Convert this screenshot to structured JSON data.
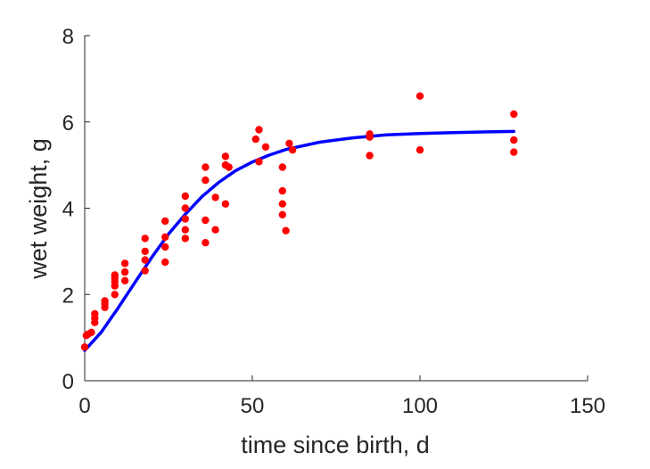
{
  "chart_data": {
    "type": "scatter",
    "title": "",
    "xlabel": "time since birth, d",
    "ylabel": "wet weight, g",
    "xlim": [
      0,
      150
    ],
    "ylim": [
      0,
      8
    ],
    "x_ticks": [
      0,
      50,
      100,
      150
    ],
    "y_ticks": [
      0,
      2,
      4,
      6,
      8
    ],
    "grid": false,
    "legend": "none",
    "colors": {
      "points": "#ff0000",
      "curve": "#0000ff",
      "axis": "#262626"
    },
    "series": [
      {
        "type": "scatter",
        "points": [
          [
            0,
            0.78
          ],
          [
            0.5,
            1.05
          ],
          [
            1,
            1.08
          ],
          [
            2,
            1.12
          ],
          [
            3,
            1.35
          ],
          [
            3,
            1.45
          ],
          [
            3,
            1.55
          ],
          [
            6,
            1.7
          ],
          [
            6,
            1.78
          ],
          [
            6,
            1.85
          ],
          [
            9,
            2.0
          ],
          [
            9,
            2.2
          ],
          [
            9,
            2.3
          ],
          [
            9,
            2.38
          ],
          [
            9,
            2.45
          ],
          [
            12,
            2.32
          ],
          [
            12,
            2.52
          ],
          [
            12,
            2.72
          ],
          [
            18,
            2.55
          ],
          [
            18,
            2.8
          ],
          [
            18,
            3.0
          ],
          [
            18,
            3.3
          ],
          [
            24,
            2.75
          ],
          [
            24,
            3.1
          ],
          [
            24,
            3.33
          ],
          [
            24,
            3.7
          ],
          [
            30,
            3.3
          ],
          [
            30,
            3.5
          ],
          [
            30,
            3.75
          ],
          [
            30,
            4.0
          ],
          [
            30,
            4.28
          ],
          [
            36,
            3.2
          ],
          [
            36,
            3.72
          ],
          [
            36,
            4.65
          ],
          [
            36,
            4.95
          ],
          [
            39,
            3.5
          ],
          [
            39,
            4.25
          ],
          [
            42,
            4.1
          ],
          [
            42,
            5.0
          ],
          [
            42,
            5.2
          ],
          [
            43,
            4.95
          ],
          [
            51,
            5.6
          ],
          [
            52,
            5.08
          ],
          [
            52,
            5.82
          ],
          [
            54,
            5.42
          ],
          [
            59,
            4.95
          ],
          [
            59,
            4.1
          ],
          [
            59,
            4.4
          ],
          [
            59,
            3.85
          ],
          [
            60,
            3.48
          ],
          [
            61,
            5.5
          ],
          [
            62,
            5.35
          ],
          [
            85,
            5.22
          ],
          [
            85,
            5.65
          ],
          [
            85,
            5.72
          ],
          [
            100,
            5.35
          ],
          [
            100,
            6.6
          ],
          [
            128,
            5.3
          ],
          [
            128,
            5.58
          ],
          [
            128,
            6.18
          ]
        ]
      },
      {
        "type": "line",
        "x": [
          0,
          5,
          10,
          15,
          20,
          25,
          30,
          35,
          40,
          45,
          50,
          55,
          60,
          70,
          80,
          90,
          100,
          110,
          120,
          128
        ],
        "y": [
          0.7,
          1.13,
          1.69,
          2.28,
          2.86,
          3.4,
          3.86,
          4.27,
          4.6,
          4.87,
          5.07,
          5.23,
          5.36,
          5.53,
          5.63,
          5.7,
          5.73,
          5.75,
          5.77,
          5.78
        ]
      }
    ]
  }
}
